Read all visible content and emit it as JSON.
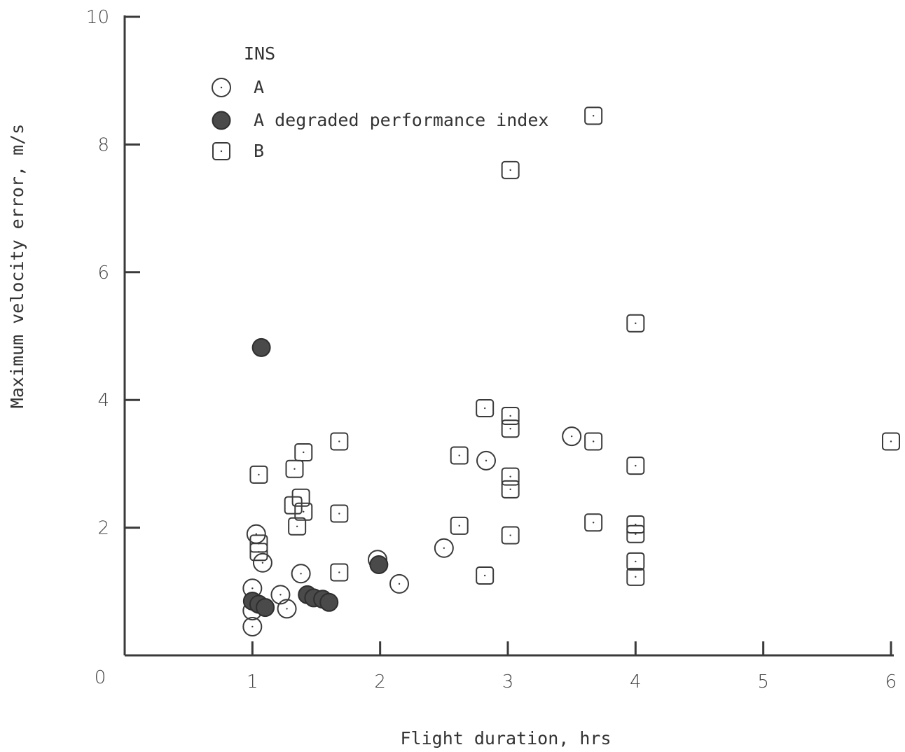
{
  "chart_data": {
    "type": "scatter",
    "xlabel": "Flight duration, hrs",
    "ylabel": "Maximum velocity error, m/s",
    "xlim": [
      0,
      6
    ],
    "ylim": [
      0,
      10
    ],
    "x_ticks": [
      1,
      2,
      3,
      4,
      5,
      6
    ],
    "y_ticks": [
      2,
      4,
      6,
      8,
      10
    ],
    "origin_label": "0",
    "legend": {
      "title": "INS",
      "placement": "top-left",
      "entries": [
        {
          "label": "A",
          "marker": "open-circle"
        },
        {
          "label": "A degraded performance index",
          "marker": "filled-circle"
        },
        {
          "label": "B",
          "marker": "square"
        }
      ]
    },
    "series": [
      {
        "name": "A",
        "marker": "open-circle",
        "points": [
          [
            1.0,
            0.45
          ],
          [
            1.0,
            0.7
          ],
          [
            1.0,
            1.05
          ],
          [
            1.03,
            1.9
          ],
          [
            1.08,
            1.45
          ],
          [
            1.22,
            0.95
          ],
          [
            1.27,
            0.73
          ],
          [
            1.38,
            1.28
          ],
          [
            1.98,
            1.5
          ],
          [
            2.15,
            1.12
          ],
          [
            2.5,
            1.68
          ],
          [
            2.83,
            3.05
          ],
          [
            3.5,
            3.43
          ]
        ]
      },
      {
        "name": "A degraded performance index",
        "marker": "filled-circle",
        "points": [
          [
            1.07,
            4.82
          ],
          [
            1.0,
            0.85
          ],
          [
            1.05,
            0.8
          ],
          [
            1.1,
            0.75
          ],
          [
            1.43,
            0.95
          ],
          [
            1.48,
            0.9
          ],
          [
            1.55,
            0.88
          ],
          [
            1.6,
            0.83
          ],
          [
            1.99,
            1.42
          ]
        ]
      },
      {
        "name": "B",
        "marker": "square",
        "points": [
          [
            1.05,
            2.83
          ],
          [
            1.05,
            1.75
          ],
          [
            1.05,
            1.62
          ],
          [
            1.33,
            2.92
          ],
          [
            1.4,
            3.18
          ],
          [
            1.32,
            2.35
          ],
          [
            1.38,
            2.47
          ],
          [
            1.4,
            2.25
          ],
          [
            1.35,
            2.02
          ],
          [
            1.68,
            3.35
          ],
          [
            1.68,
            2.22
          ],
          [
            1.68,
            1.3
          ],
          [
            2.62,
            3.13
          ],
          [
            2.62,
            2.03
          ],
          [
            2.82,
            3.87
          ],
          [
            2.82,
            1.25
          ],
          [
            3.02,
            7.6
          ],
          [
            3.02,
            3.75
          ],
          [
            3.02,
            3.55
          ],
          [
            3.02,
            2.8
          ],
          [
            3.02,
            2.6
          ],
          [
            3.02,
            1.88
          ],
          [
            3.67,
            8.45
          ],
          [
            3.67,
            3.35
          ],
          [
            3.67,
            2.08
          ],
          [
            4.0,
            5.2
          ],
          [
            4.0,
            2.97
          ],
          [
            4.0,
            2.05
          ],
          [
            4.0,
            1.9
          ],
          [
            4.0,
            1.47
          ],
          [
            4.0,
            1.23
          ],
          [
            6.0,
            3.35
          ]
        ]
      }
    ]
  }
}
